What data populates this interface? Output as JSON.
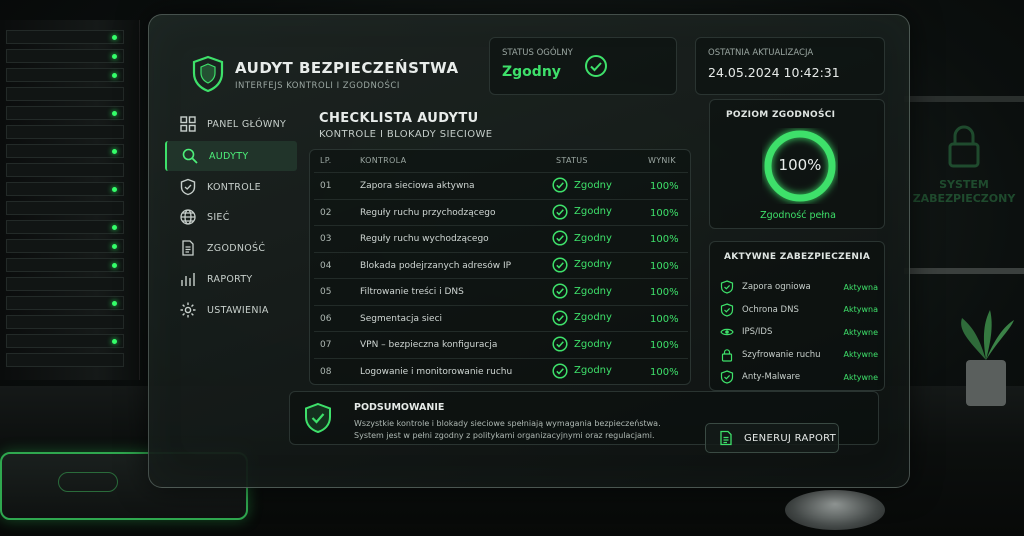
{
  "header": {
    "title": "AUDYT BEZPIECZEŃSTWA",
    "subtitle": "INTERFEJS KONTROLI I ZGODNOŚCI",
    "status_label": "STATUS OGÓLNY",
    "status_value": "Zgodny",
    "update_label": "OSTATNIA AKTUALIZACJA",
    "update_value": "24.05.2024 10:42:31"
  },
  "sidebar": {
    "items": [
      {
        "label": "PANEL GŁÓWNY",
        "icon": "grid-icon"
      },
      {
        "label": "AUDYTY",
        "icon": "search-icon",
        "active": true
      },
      {
        "label": "KONTROLE",
        "icon": "shield-icon"
      },
      {
        "label": "SIEĆ",
        "icon": "globe-icon"
      },
      {
        "label": "ZGODNOŚĆ",
        "icon": "document-icon"
      },
      {
        "label": "RAPORTY",
        "icon": "bar-chart-icon"
      },
      {
        "label": "USTAWIENIA",
        "icon": "gear-icon"
      }
    ]
  },
  "checklist": {
    "title": "CHECKLISTA AUDYTU",
    "subtitle": "KONTROLE I BLOKADY SIECIOWE",
    "columns": [
      "LP.",
      "KONTROLA",
      "STATUS",
      "WYNIK"
    ],
    "rows": [
      {
        "num": "01",
        "name": "Zapora sieciowa aktywna",
        "status": "Zgodny",
        "result": "100%"
      },
      {
        "num": "02",
        "name": "Reguły ruchu przychodzącego",
        "status": "Zgodny",
        "result": "100%"
      },
      {
        "num": "03",
        "name": "Reguły ruchu wychodzącego",
        "status": "Zgodny",
        "result": "100%"
      },
      {
        "num": "04",
        "name": "Blokada podejrzanych adresów IP",
        "status": "Zgodny",
        "result": "100%"
      },
      {
        "num": "05",
        "name": "Filtrowanie treści i DNS",
        "status": "Zgodny",
        "result": "100%"
      },
      {
        "num": "06",
        "name": "Segmentacja sieci",
        "status": "Zgodny",
        "result": "100%"
      },
      {
        "num": "07",
        "name": "VPN – bezpieczna konfiguracja",
        "status": "Zgodny",
        "result": "100%"
      },
      {
        "num": "08",
        "name": "Logowanie i monitorowanie ruchu",
        "status": "Zgodny",
        "result": "100%"
      }
    ]
  },
  "compliance": {
    "label": "POZIOM ZGODNOŚCI",
    "value": "100%",
    "fraction": 1.0,
    "caption": "Zgodność pełna"
  },
  "protections": {
    "label": "AKTYWNE ZABEZPIECZENIA",
    "items": [
      {
        "name": "Zapora ogniowa",
        "status": "Aktywna",
        "icon": "shield-check-icon"
      },
      {
        "name": "Ochrona DNS",
        "status": "Aktywna",
        "icon": "shield-check-icon"
      },
      {
        "name": "IPS/IDS",
        "status": "Aktywne",
        "icon": "eye-icon"
      },
      {
        "name": "Szyfrowanie ruchu",
        "status": "Aktywne",
        "icon": "lock-icon"
      },
      {
        "name": "Anty-Malware",
        "status": "Aktywne",
        "icon": "shield-check-icon"
      }
    ]
  },
  "summary": {
    "title": "PODSUMOWANIE",
    "text": "Wszystkie kontrole i blokady sieciowe spełniają wymagania bezpieczeństwa. System jest w pełni zgodny z politykami organizacyjnymi oraz regulacjami.",
    "button": "GENERUJ RAPORT"
  },
  "background": {
    "wall_text": "SYSTEM ZABEZPIECZONY"
  },
  "colors": {
    "accent": "#3ee06a",
    "panel": "#121816",
    "text": "#cfd6d3"
  }
}
